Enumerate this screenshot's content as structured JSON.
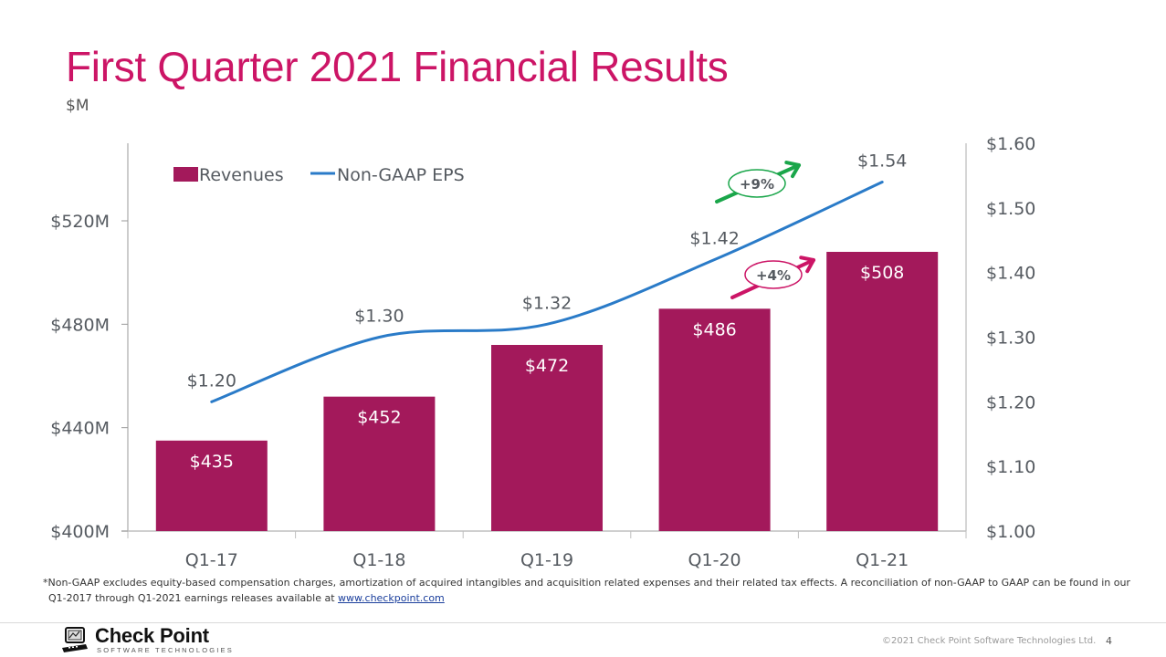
{
  "slide": {
    "title": "First Quarter 2021 Financial Results",
    "unit_label": "$M",
    "footnote_line1": "*Non-GAAP excludes equity-based compensation charges, amortization of acquired intangibles and acquisition related expenses and their related tax effects. A reconciliation of non-GAAP to GAAP can be found in our",
    "footnote_line2_prefix": "Q1-2017 through Q1-2021 earnings releases available at ",
    "footnote_link": "www.checkpoint.com",
    "copyright": "©2021 Check Point Software Technologies Ltd.",
    "page_number": "4",
    "logo": {
      "name": "Check Point",
      "subtitle": "SOFTWARE TECHNOLOGIES",
      "icon": "computer-logo-icon"
    }
  },
  "colors": {
    "title": "#cc1566",
    "bar": "#a3195b",
    "eps_line": "#2a7bc8",
    "badge_eps": "#1aa64a",
    "badge_revenue": "#cc1566",
    "axis_text": "#555a60"
  },
  "chart_data": {
    "type": "bar",
    "title": "First Quarter 2021 Financial Results",
    "categories": [
      "Q1-17",
      "Q1-18",
      "Q1-19",
      "Q1-20",
      "Q1-21"
    ],
    "series": [
      {
        "name": "Revenues",
        "type": "bar",
        "axis": "left",
        "values": [
          435,
          452,
          472,
          486,
          508
        ],
        "labels": [
          "$435",
          "$452",
          "$472",
          "$486",
          "$508"
        ]
      },
      {
        "name": "Non-GAAP EPS",
        "type": "line",
        "axis": "right",
        "smooth": true,
        "values": [
          1.2,
          1.3,
          1.32,
          1.42,
          1.54
        ],
        "labels": [
          "$1.20",
          "$1.30",
          "$1.32",
          "$1.42",
          "$1.54"
        ]
      }
    ],
    "left_axis": {
      "label": "$M",
      "range": [
        400,
        550
      ],
      "ticks": [
        400,
        440,
        480,
        520
      ],
      "tick_labels": [
        "$400M",
        "$440M",
        "$480M",
        "$520M"
      ]
    },
    "right_axis": {
      "range": [
        1.0,
        1.6
      ],
      "ticks": [
        1.0,
        1.1,
        1.2,
        1.3,
        1.4,
        1.5,
        1.6
      ],
      "tick_labels": [
        "$1.00",
        "$1.10",
        "$1.20",
        "$1.30",
        "$1.40",
        "$1.50",
        "$1.60"
      ]
    },
    "legend": {
      "placement": "top-left",
      "entries": [
        "Revenues",
        "Non-GAAP EPS"
      ]
    },
    "grid": false,
    "annotations": [
      {
        "text": "+9%",
        "series": "Non-GAAP EPS",
        "icon": "up-arrow-icon",
        "color": "#1aa64a"
      },
      {
        "text": "+4%",
        "series": "Revenues",
        "icon": "up-arrow-icon",
        "color": "#cc1566"
      }
    ]
  }
}
